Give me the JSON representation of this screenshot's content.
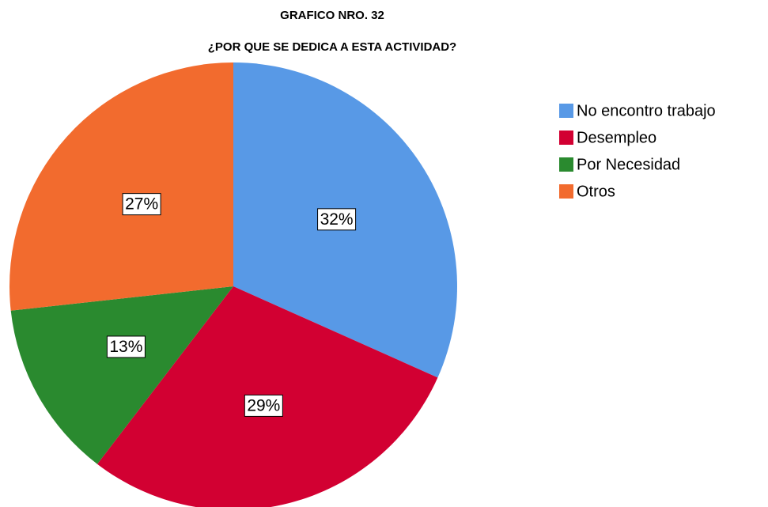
{
  "chart_data": {
    "type": "pie",
    "title": "GRAFICO NRO. 32",
    "subtitle": "¿POR QUE SE DEDICA A ESTA ACTIVIDAD?",
    "categories": [
      "No encontro trabajo",
      "Desempleo",
      "Por Necesidad",
      "Otros"
    ],
    "values": [
      32,
      29,
      13,
      27
    ],
    "value_labels": [
      "32%",
      "29%",
      "13%",
      "27%"
    ],
    "colors": [
      "#5899e6",
      "#d20032",
      "#2a8a2f",
      "#f26b2e"
    ],
    "legend": "right"
  }
}
